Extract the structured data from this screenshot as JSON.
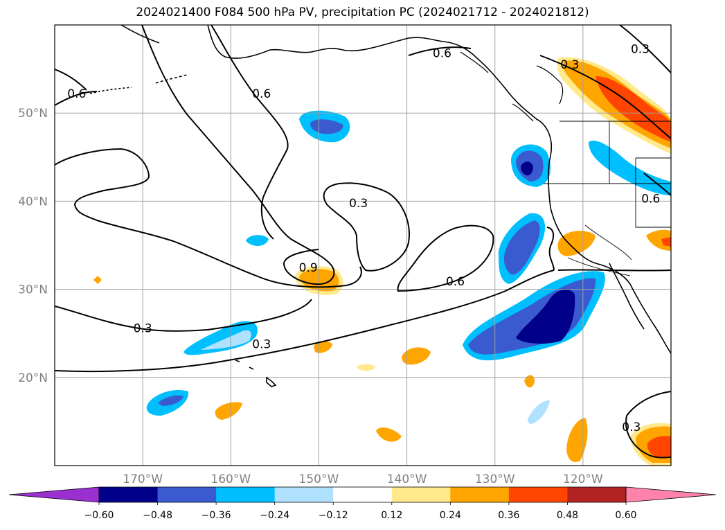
{
  "title": "2024021400 F084 500 hPa PV, precipitation PC (2024021712 - 2024021812)",
  "map": {
    "lon_range": [
      -180,
      -110
    ],
    "lat_range": [
      10,
      60
    ],
    "lon_ticks": [
      {
        "value": -170,
        "label": "170°W"
      },
      {
        "value": -160,
        "label": "160°W"
      },
      {
        "value": -150,
        "label": "150°W"
      },
      {
        "value": -140,
        "label": "140°W"
      },
      {
        "value": -130,
        "label": "130°W"
      },
      {
        "value": -120,
        "label": "120°W"
      }
    ],
    "lat_ticks": [
      {
        "value": 50,
        "label": "50°N"
      },
      {
        "value": 40,
        "label": "40°N"
      },
      {
        "value": 30,
        "label": "30°N"
      },
      {
        "value": 20,
        "label": "20°N"
      }
    ],
    "gridlines": true,
    "contour_labels": [
      {
        "text": "0.3",
        "lon": -170,
        "lat": 25.6
      },
      {
        "text": "0.3",
        "lon": -156.5,
        "lat": 23.8
      },
      {
        "text": "0.3",
        "lon": -145.5,
        "lat": 39.8
      },
      {
        "text": "0.6",
        "lon": -156.5,
        "lat": 52.2
      },
      {
        "text": "0.6",
        "lon": -134.5,
        "lat": 30.9
      },
      {
        "text": "0.9",
        "lon": -151.2,
        "lat": 32.5
      },
      {
        "text": "0.6",
        "lon": -177.5,
        "lat": 52.2
      },
      {
        "text": "0.6",
        "lon": -136,
        "lat": 56.8
      },
      {
        "text": "0.3",
        "lon": -121.5,
        "lat": 55.5
      },
      {
        "text": "0.3",
        "lon": -113.5,
        "lat": 57.3
      },
      {
        "text": "0.6",
        "lon": -112.3,
        "lat": 40.3
      },
      {
        "text": "0.3",
        "lon": -114.5,
        "lat": 14.4
      }
    ]
  },
  "colorbar": {
    "boundaries": [
      "−0.60",
      "−0.48",
      "−0.36",
      "−0.24",
      "−0.12",
      "0.12",
      "0.24",
      "0.36",
      "0.48",
      "0.60"
    ],
    "colors": [
      "#9b30d1",
      "#00008b",
      "#3a5bd0",
      "#00bfff",
      "#b0e2ff",
      "#ffffff",
      "#ffe98a",
      "#ffa500",
      "#ff4500",
      "#b22222",
      "#ff82ab"
    ],
    "extend": "both"
  }
}
